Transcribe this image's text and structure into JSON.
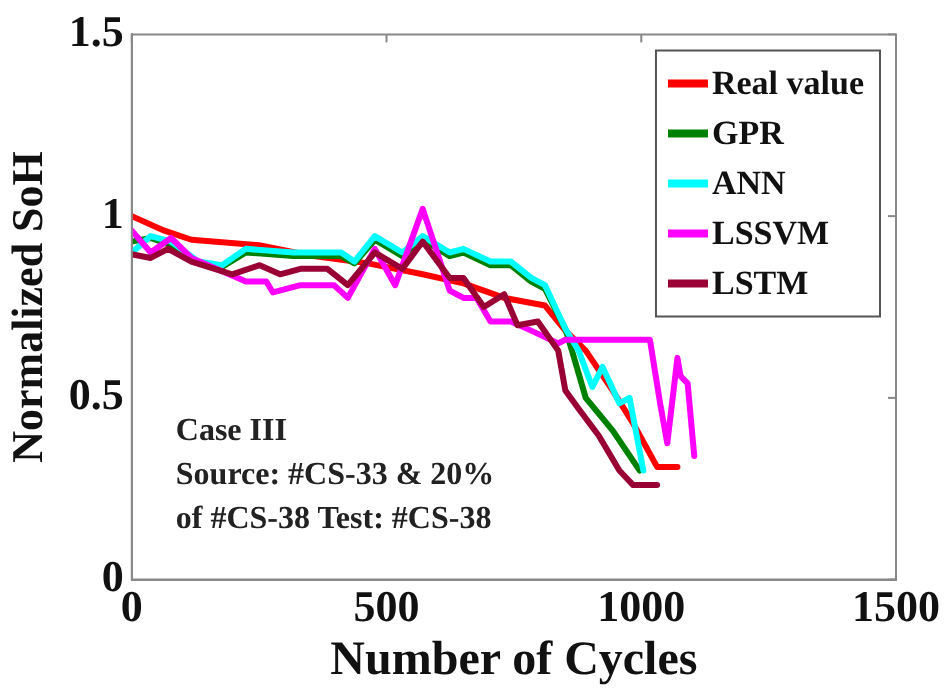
{
  "chart_data": {
    "type": "line",
    "xlabel": "Number of Cycles",
    "ylabel": "Normalized SoH",
    "xlim": [
      0,
      1500
    ],
    "xticks": [
      0,
      500,
      1000,
      1500
    ],
    "ylim": [
      0,
      1.5
    ],
    "yticks": [
      0,
      0.5,
      1,
      1.5
    ],
    "grid": false,
    "legend": "top right",
    "marker": "none",
    "line_style": "solid",
    "annotations": [
      "Case III",
      "Source: #CS-33 & 20%",
      "of #CS-38 Test: #CS-38"
    ],
    "series": [
      {
        "name": "Real value",
        "color": "#ff0000",
        "x": [
          0,
          64,
          117,
          250,
          357,
          464,
          571,
          651,
          731,
          811,
          851,
          891,
          944,
          984,
          1031,
          1071
        ],
        "values": [
          1.0,
          0.96,
          0.935,
          0.92,
          0.89,
          0.87,
          0.84,
          0.815,
          0.775,
          0.754,
          0.685,
          0.63,
          0.52,
          0.43,
          0.31,
          0.31
        ]
      },
      {
        "name": "GPR",
        "color": "#008000",
        "x": [
          0,
          37,
          77,
          131,
          177,
          224,
          317,
          411,
          437,
          477,
          531,
          571,
          624,
          651,
          704,
          744,
          784,
          811,
          851,
          864,
          891,
          944,
          997
        ],
        "values": [
          0.93,
          0.94,
          0.92,
          0.87,
          0.86,
          0.9,
          0.89,
          0.89,
          0.87,
          0.935,
          0.89,
          0.935,
          0.89,
          0.9,
          0.865,
          0.865,
          0.82,
          0.8,
          0.69,
          0.63,
          0.5,
          0.41,
          0.3
        ]
      },
      {
        "name": "ANN",
        "color": "#00ffff",
        "x": [
          0,
          37,
          77,
          131,
          177,
          224,
          317,
          411,
          437,
          477,
          531,
          571,
          624,
          651,
          704,
          744,
          784,
          811,
          851,
          877,
          904,
          924,
          957,
          977,
          1004
        ],
        "values": [
          0.9,
          0.945,
          0.93,
          0.875,
          0.865,
          0.91,
          0.9,
          0.9,
          0.875,
          0.945,
          0.9,
          0.945,
          0.9,
          0.91,
          0.875,
          0.875,
          0.83,
          0.81,
          0.69,
          0.63,
          0.53,
          0.585,
          0.485,
          0.5,
          0.3
        ]
      },
      {
        "name": "LSSVM",
        "color": "#ff00ff",
        "x": [
          0,
          37,
          77,
          117,
          224,
          264,
          277,
          331,
          397,
          424,
          477,
          517,
          571,
          624,
          651,
          677,
          704,
          744,
          784,
          837,
          851,
          1017,
          1037,
          1051,
          1071,
          1077,
          1091,
          1104
        ],
        "values": [
          0.96,
          0.9,
          0.94,
          0.885,
          0.82,
          0.82,
          0.79,
          0.81,
          0.81,
          0.775,
          0.91,
          0.81,
          1.02,
          0.795,
          0.775,
          0.775,
          0.71,
          0.71,
          0.685,
          0.65,
          0.66,
          0.66,
          0.485,
          0.375,
          0.61,
          0.56,
          0.54,
          0.34
        ]
      },
      {
        "name": "LSTM",
        "color": "#990033",
        "x": [
          0,
          37,
          71,
          117,
          197,
          251,
          291,
          331,
          384,
          424,
          477,
          531,
          571,
          624,
          651,
          691,
          731,
          757,
          797,
          837,
          851,
          877,
          917,
          957,
          984,
          1031
        ],
        "values": [
          0.895,
          0.885,
          0.91,
          0.875,
          0.84,
          0.865,
          0.84,
          0.855,
          0.855,
          0.81,
          0.9,
          0.855,
          0.93,
          0.83,
          0.83,
          0.75,
          0.785,
          0.7,
          0.71,
          0.63,
          0.52,
          0.47,
          0.395,
          0.3,
          0.26,
          0.26
        ]
      }
    ]
  }
}
